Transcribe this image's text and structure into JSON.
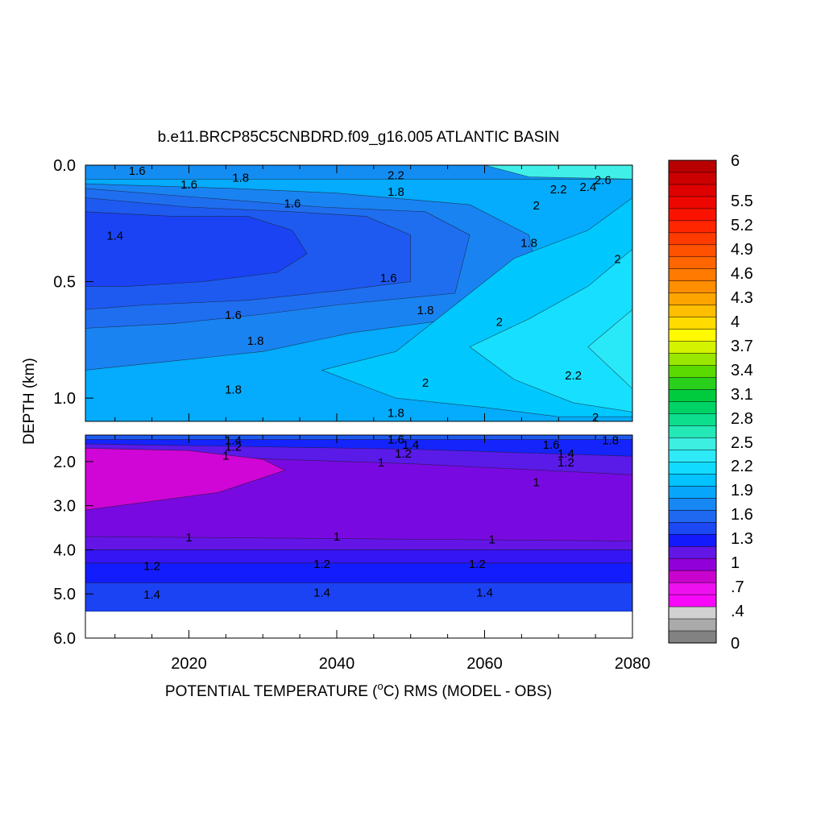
{
  "chart_data": {
    "type": "heatmap",
    "title": "b.e11.BRCP85C5CNBDRD.f09_g16.005 ATLANTIC BASIN",
    "xlabel": "POTENTIAL TEMPERATURE (°C) RMS (MODEL - OBS)",
    "xlabel_parts": [
      "POTENTIAL TEMPERATURE (",
      "o",
      "C) RMS (MODEL - OBS)"
    ],
    "ylabel": "DEPTH (km)",
    "xlim": [
      2006,
      2080
    ],
    "x_ticks": [
      "2020",
      "2040",
      "2060",
      "2080"
    ],
    "x_tick_values": [
      2020,
      2040,
      2060,
      2080
    ],
    "panels": [
      {
        "name": "upper",
        "ylim": [
          0.0,
          1.1
        ],
        "y_ticks": [
          "0.0",
          "0.5",
          "1.0"
        ],
        "y_tick_values": [
          0.0,
          0.5,
          1.0
        ]
      },
      {
        "name": "lower",
        "ylim": [
          1.4,
          6.0
        ],
        "y_ticks": [
          "2.0",
          "3.0",
          "4.0",
          "5.0",
          "6.0"
        ],
        "y_tick_values": [
          2.0,
          3.0,
          4.0,
          5.0,
          6.0
        ]
      }
    ],
    "colorbar": {
      "min": 0,
      "max": 6,
      "levels": 40,
      "tick_labels": [
        "6",
        "5.5",
        "5.2",
        "4.9",
        "4.6",
        "4.3",
        "4",
        "3.7",
        "3.4",
        "3.1",
        "2.8",
        "2.5",
        "2.2",
        "1.9",
        "1.6",
        "1.3",
        "1",
        ".7",
        ".4",
        "0"
      ],
      "tick_values": [
        6,
        5.5,
        5.2,
        4.9,
        4.6,
        4.3,
        4,
        3.7,
        3.4,
        3.1,
        2.8,
        2.5,
        2.2,
        1.9,
        1.6,
        1.3,
        1,
        0.7,
        0.4,
        0
      ]
    },
    "upper_regions": [
      {
        "value": 1.75,
        "points": [
          [
            2006,
            0.0
          ],
          [
            2080,
            0.0
          ],
          [
            2080,
            1.1
          ],
          [
            2006,
            1.1
          ]
        ]
      },
      {
        "value": 1.9,
        "points": [
          [
            2006,
            0.06
          ],
          [
            2080,
            0.06
          ],
          [
            2080,
            1.1
          ],
          [
            2006,
            1.1
          ]
        ]
      },
      {
        "value": 1.7,
        "points": [
          [
            2006,
            0.08
          ],
          [
            2026,
            0.1
          ],
          [
            2040,
            0.12
          ],
          [
            2058,
            0.17
          ],
          [
            2066,
            0.3
          ],
          [
            2068,
            0.6
          ],
          [
            2056,
            0.66
          ],
          [
            2042,
            0.72
          ],
          [
            2030,
            0.8
          ],
          [
            2006,
            0.88
          ]
        ]
      },
      {
        "value": 1.6,
        "points": [
          [
            2006,
            0.1
          ],
          [
            2022,
            0.14
          ],
          [
            2038,
            0.18
          ],
          [
            2052,
            0.2
          ],
          [
            2058,
            0.3
          ],
          [
            2056,
            0.55
          ],
          [
            2040,
            0.6
          ],
          [
            2030,
            0.64
          ],
          [
            2018,
            0.68
          ],
          [
            2006,
            0.7
          ]
        ]
      },
      {
        "value": 1.5,
        "points": [
          [
            2006,
            0.14
          ],
          [
            2020,
            0.18
          ],
          [
            2034,
            0.2
          ],
          [
            2044,
            0.22
          ],
          [
            2050,
            0.3
          ],
          [
            2050,
            0.5
          ],
          [
            2040,
            0.54
          ],
          [
            2028,
            0.58
          ],
          [
            2014,
            0.6
          ],
          [
            2006,
            0.62
          ]
        ]
      },
      {
        "value": 1.4,
        "points": [
          [
            2006,
            0.2
          ],
          [
            2018,
            0.22
          ],
          [
            2028,
            0.22
          ],
          [
            2034,
            0.28
          ],
          [
            2036,
            0.38
          ],
          [
            2032,
            0.46
          ],
          [
            2022,
            0.5
          ],
          [
            2012,
            0.52
          ],
          [
            2006,
            0.52
          ]
        ]
      },
      {
        "value": 2.05,
        "points": [
          [
            2080,
            0.14
          ],
          [
            2074,
            0.28
          ],
          [
            2064,
            0.4
          ],
          [
            2056,
            0.6
          ],
          [
            2048,
            0.8
          ],
          [
            2038,
            0.88
          ],
          [
            2048,
            1.0
          ],
          [
            2060,
            1.04
          ],
          [
            2070,
            1.08
          ],
          [
            2080,
            1.08
          ]
        ]
      },
      {
        "value": 2.2,
        "points": [
          [
            2080,
            0.36
          ],
          [
            2074,
            0.52
          ],
          [
            2066,
            0.66
          ],
          [
            2058,
            0.78
          ],
          [
            2064,
            0.92
          ],
          [
            2072,
            1.02
          ],
          [
            2080,
            1.06
          ]
        ]
      },
      {
        "value": 2.3,
        "points": [
          [
            2080,
            0.62
          ],
          [
            2074,
            0.78
          ],
          [
            2080,
            0.96
          ]
        ]
      },
      {
        "value": 2.45,
        "points": [
          [
            2060,
            0.0
          ],
          [
            2080,
            0.0
          ],
          [
            2080,
            0.06
          ],
          [
            2066,
            0.05
          ]
        ]
      }
    ],
    "lower_regions": [
      {
        "value": 1.05,
        "points": [
          [
            2006,
            1.4
          ],
          [
            2080,
            1.4
          ],
          [
            2080,
            5.4
          ],
          [
            2006,
            5.4
          ]
        ]
      },
      {
        "value": 1.5,
        "points": [
          [
            2006,
            1.4
          ],
          [
            2080,
            1.4
          ],
          [
            2080,
            1.5
          ],
          [
            2006,
            1.5
          ]
        ]
      },
      {
        "value": 1.3,
        "points": [
          [
            2006,
            1.5
          ],
          [
            2080,
            1.5
          ],
          [
            2080,
            1.9
          ],
          [
            2050,
            1.75
          ],
          [
            2006,
            1.62
          ]
        ]
      },
      {
        "value": 1.15,
        "points": [
          [
            2006,
            1.6
          ],
          [
            2050,
            1.72
          ],
          [
            2080,
            1.88
          ],
          [
            2080,
            2.3
          ],
          [
            2050,
            2.05
          ],
          [
            2006,
            1.8
          ]
        ]
      },
      {
        "value": 0.8,
        "points": [
          [
            2006,
            1.7
          ],
          [
            2020,
            1.75
          ],
          [
            2030,
            1.95
          ],
          [
            2033,
            2.2
          ],
          [
            2024,
            2.7
          ],
          [
            2006,
            3.1
          ]
        ]
      },
      {
        "value": 1.12,
        "points": [
          [
            2006,
            3.7
          ],
          [
            2080,
            3.8
          ],
          [
            2080,
            4.0
          ],
          [
            2006,
            4.0
          ]
        ]
      },
      {
        "value": 1.2,
        "points": [
          [
            2006,
            4.0
          ],
          [
            2080,
            4.0
          ],
          [
            2080,
            4.3
          ],
          [
            2006,
            4.3
          ]
        ]
      },
      {
        "value": 1.28,
        "points": [
          [
            2006,
            4.3
          ],
          [
            2080,
            4.3
          ],
          [
            2080,
            4.75
          ],
          [
            2006,
            4.75
          ]
        ]
      },
      {
        "value": 1.4,
        "points": [
          [
            2006,
            4.75
          ],
          [
            2080,
            4.75
          ],
          [
            2080,
            5.4
          ],
          [
            2006,
            5.4
          ]
        ]
      }
    ],
    "contour_labels": [
      {
        "panel": "upper",
        "text": "1.6",
        "x": 2013,
        "y": 0.02
      },
      {
        "panel": "upper",
        "text": "1.8",
        "x": 2027,
        "y": 0.05
      },
      {
        "panel": "upper",
        "text": "1.6",
        "x": 2020,
        "y": 0.08
      },
      {
        "panel": "upper",
        "text": "1.4",
        "x": 2010,
        "y": 0.3
      },
      {
        "panel": "upper",
        "text": "1.6",
        "x": 2034,
        "y": 0.16
      },
      {
        "panel": "upper",
        "text": "2.2",
        "x": 2048,
        "y": 0.04
      },
      {
        "panel": "upper",
        "text": "1.8",
        "x": 2048,
        "y": 0.11
      },
      {
        "panel": "upper",
        "text": "2.2",
        "x": 2070,
        "y": 0.1
      },
      {
        "panel": "upper",
        "text": "2",
        "x": 2067,
        "y": 0.17
      },
      {
        "panel": "upper",
        "text": "1.8",
        "x": 2066,
        "y": 0.33
      },
      {
        "panel": "upper",
        "text": "2.6",
        "x": 2076,
        "y": 0.06
      },
      {
        "panel": "upper",
        "text": "2.4",
        "x": 2074,
        "y": 0.09
      },
      {
        "panel": "upper",
        "text": "2",
        "x": 2078,
        "y": 0.4
      },
      {
        "panel": "upper",
        "text": "1.6",
        "x": 2047,
        "y": 0.48
      },
      {
        "panel": "upper",
        "text": "1.8",
        "x": 2052,
        "y": 0.62
      },
      {
        "panel": "upper",
        "text": "1.6",
        "x": 2026,
        "y": 0.64
      },
      {
        "panel": "upper",
        "text": "2",
        "x": 2062,
        "y": 0.67
      },
      {
        "panel": "upper",
        "text": "1.8",
        "x": 2029,
        "y": 0.75
      },
      {
        "panel": "upper",
        "text": "2.2",
        "x": 2072,
        "y": 0.9
      },
      {
        "panel": "upper",
        "text": "2",
        "x": 2052,
        "y": 0.93
      },
      {
        "panel": "upper",
        "text": "1.8",
        "x": 2026,
        "y": 0.96
      },
      {
        "panel": "upper",
        "text": "1.8",
        "x": 2048,
        "y": 1.06
      },
      {
        "panel": "upper",
        "text": "2",
        "x": 2075,
        "y": 1.08
      },
      {
        "panel": "lower",
        "text": "1.4",
        "x": 2026,
        "y": 1.5
      },
      {
        "panel": "lower",
        "text": "1.2",
        "x": 2026,
        "y": 1.65
      },
      {
        "panel": "lower",
        "text": "1",
        "x": 2025,
        "y": 1.85
      },
      {
        "panel": "lower",
        "text": "1.6",
        "x": 2048,
        "y": 1.48
      },
      {
        "panel": "lower",
        "text": "1.4",
        "x": 2050,
        "y": 1.6
      },
      {
        "panel": "lower",
        "text": "1.2",
        "x": 2049,
        "y": 1.8
      },
      {
        "panel": "lower",
        "text": "1",
        "x": 2046,
        "y": 2.0
      },
      {
        "panel": "lower",
        "text": "1.6",
        "x": 2069,
        "y": 1.6
      },
      {
        "panel": "lower",
        "text": "1.4",
        "x": 2071,
        "y": 1.8
      },
      {
        "panel": "lower",
        "text": "1.2",
        "x": 2071,
        "y": 2.0
      },
      {
        "panel": "lower",
        "text": "1.8",
        "x": 2077,
        "y": 1.5
      },
      {
        "panel": "lower",
        "text": "1",
        "x": 2067,
        "y": 2.45
      },
      {
        "panel": "lower",
        "text": "1",
        "x": 2020,
        "y": 3.7
      },
      {
        "panel": "lower",
        "text": "1",
        "x": 2040,
        "y": 3.68
      },
      {
        "panel": "lower",
        "text": "1",
        "x": 2061,
        "y": 3.75
      },
      {
        "panel": "lower",
        "text": "1.2",
        "x": 2015,
        "y": 4.35
      },
      {
        "panel": "lower",
        "text": "1.2",
        "x": 2038,
        "y": 4.3
      },
      {
        "panel": "lower",
        "text": "1.2",
        "x": 2059,
        "y": 4.3
      },
      {
        "panel": "lower",
        "text": "1.4",
        "x": 2015,
        "y": 5.0
      },
      {
        "panel": "lower",
        "text": "1.4",
        "x": 2038,
        "y": 4.95
      },
      {
        "panel": "lower",
        "text": "1.4",
        "x": 2060,
        "y": 4.95
      }
    ]
  }
}
